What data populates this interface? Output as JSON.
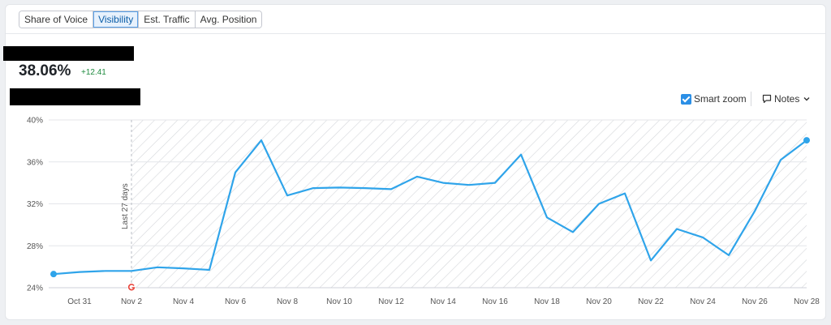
{
  "tabs": [
    {
      "label": "Share of Voice",
      "active": false
    },
    {
      "label": "Visibility",
      "active": true
    },
    {
      "label": "Est. Traffic",
      "active": false
    },
    {
      "label": "Avg. Position",
      "active": false
    }
  ],
  "metric": {
    "value": "38.06%",
    "delta": "+12.41"
  },
  "controls": {
    "smart_zoom_label": "Smart zoom",
    "smart_zoom_checked": true,
    "notes_label": "Notes"
  },
  "annotation": {
    "period_label": "Last 27 days"
  },
  "icons": {
    "smart_zoom": "checkbox-checked-icon",
    "notes": "speech-bubble-icon",
    "notes_toggle": "chevron-down-icon",
    "event_marker": "google-g-icon"
  },
  "colors": {
    "line": "#2fa4ea",
    "accent": "#2b8fe6",
    "positive": "#1e8a3e"
  },
  "chart_data": {
    "type": "line",
    "y_tick_labels": [
      "24%",
      "28%",
      "32%",
      "36%",
      "40%"
    ],
    "ylim": [
      24,
      40
    ],
    "x_tick_labels": [
      "Oct 31",
      "Nov 2",
      "Nov 4",
      "Nov 6",
      "Nov 8",
      "Nov 10",
      "Nov 12",
      "Nov 14",
      "Nov 16",
      "Nov 18",
      "Nov 20",
      "Nov 22",
      "Nov 24",
      "Nov 26",
      "Nov 28"
    ],
    "grid": true,
    "hatched_period": {
      "from": "Nov 2",
      "to": "Nov 28"
    },
    "series": [
      {
        "x": [
          "Oct 30",
          "Oct 31",
          "Nov 1",
          "Nov 2",
          "Nov 3",
          "Nov 4",
          "Nov 5",
          "Nov 6",
          "Nov 7",
          "Nov 8",
          "Nov 9",
          "Nov 10",
          "Nov 11",
          "Nov 12",
          "Nov 13",
          "Nov 14",
          "Nov 15",
          "Nov 16",
          "Nov 17",
          "Nov 18",
          "Nov 19",
          "Nov 20",
          "Nov 21",
          "Nov 22",
          "Nov 23",
          "Nov 24",
          "Nov 25",
          "Nov 26",
          "Nov 27",
          "Nov 28"
        ],
        "values": [
          25.3,
          25.5,
          25.6,
          25.6,
          25.95,
          25.85,
          25.7,
          35.0,
          38.06,
          32.8,
          33.5,
          33.55,
          33.5,
          33.4,
          34.6,
          34.0,
          33.8,
          34.0,
          36.7,
          30.7,
          29.3,
          32.0,
          33.0,
          26.6,
          29.6,
          28.8,
          27.1,
          31.3,
          36.2,
          38.06
        ]
      }
    ]
  }
}
